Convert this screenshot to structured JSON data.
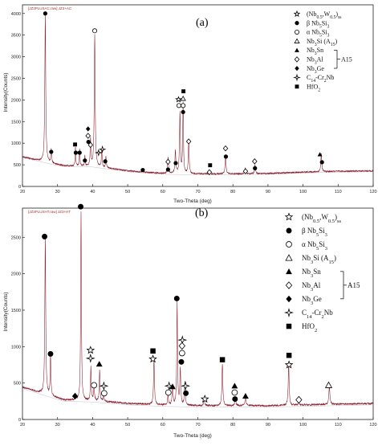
{
  "chart_data": [
    {
      "type": "line",
      "file_label": "[JZ3PLUSAC.raw] JZ3+AC",
      "panel_label": "(a)",
      "xlabel": "Two-Theta (deg)",
      "ylabel": "Intensity(Counts)",
      "xlim": [
        20,
        120
      ],
      "ylim": [
        0,
        4200
      ],
      "x_ticks": [
        20,
        30,
        40,
        50,
        60,
        70,
        80,
        90,
        100,
        110,
        120
      ],
      "y_ticks": [
        0,
        500,
        1000,
        1500,
        2000,
        2500,
        3000,
        3500,
        4000
      ],
      "baseline": [
        [
          20,
          540
        ],
        [
          30,
          480
        ],
        [
          40,
          470
        ],
        [
          50,
          360
        ],
        [
          60,
          300
        ],
        [
          70,
          290
        ],
        [
          80,
          290
        ],
        [
          90,
          300
        ],
        [
          100,
          330
        ],
        [
          110,
          350
        ],
        [
          120,
          360
        ]
      ],
      "peaks": [
        {
          "x": 26.5,
          "y": 3900,
          "w": 0.3
        },
        {
          "x": 28.2,
          "y": 820,
          "w": 0.25
        },
        {
          "x": 35.1,
          "y": 920,
          "w": 0.2
        },
        {
          "x": 36.3,
          "y": 880,
          "w": 0.2
        },
        {
          "x": 37.8,
          "y": 720,
          "w": 0.2
        },
        {
          "x": 39.4,
          "y": 1100,
          "w": 0.25
        },
        {
          "x": 40.6,
          "y": 3520,
          "w": 0.3
        },
        {
          "x": 42.6,
          "y": 870,
          "w": 0.25
        },
        {
          "x": 43.8,
          "y": 690,
          "w": 0.25
        },
        {
          "x": 54.3,
          "y": 360,
          "w": 0.3
        },
        {
          "x": 61.5,
          "y": 680,
          "w": 0.3
        },
        {
          "x": 63.6,
          "y": 830,
          "w": 0.3
        },
        {
          "x": 64.9,
          "y": 1700,
          "w": 0.3
        },
        {
          "x": 65.8,
          "y": 1920,
          "w": 0.25
        },
        {
          "x": 67.4,
          "y": 1010,
          "w": 0.3
        },
        {
          "x": 77.9,
          "y": 730,
          "w": 0.3
        },
        {
          "x": 83.5,
          "y": 420,
          "w": 0.3
        },
        {
          "x": 86.3,
          "y": 500,
          "w": 0.3
        },
        {
          "x": 105.2,
          "y": 760,
          "w": 0.3
        }
      ],
      "markers": [
        {
          "sym": "filled-circle",
          "x": 26.5,
          "y": 4000
        },
        {
          "sym": "filled-circle",
          "x": 28.2,
          "y": 800
        },
        {
          "sym": "filled-square",
          "x": 35.0,
          "y": 970
        },
        {
          "sym": "filled-circle",
          "x": 35.2,
          "y": 780
        },
        {
          "sym": "filled-circle",
          "x": 36.3,
          "y": 780
        },
        {
          "sym": "filled-circle",
          "x": 37.8,
          "y": 600
        },
        {
          "sym": "filled-diamond",
          "x": 38.7,
          "y": 1330
        },
        {
          "sym": "open-diamond",
          "x": 38.7,
          "y": 1170
        },
        {
          "sym": "filled-circle",
          "x": 38.8,
          "y": 1030
        },
        {
          "sym": "open-diamond",
          "x": 39.4,
          "y": 960
        },
        {
          "sym": "open-circle",
          "x": 40.6,
          "y": 3600
        },
        {
          "sym": "open-star4",
          "x": 41.7,
          "y": 780
        },
        {
          "sym": "open-star4",
          "x": 42.8,
          "y": 860
        },
        {
          "sym": "filled-circle",
          "x": 43.6,
          "y": 580
        },
        {
          "sym": "filled-circle",
          "x": 54.3,
          "y": 380
        },
        {
          "sym": "open-diamond",
          "x": 61.5,
          "y": 570
        },
        {
          "sym": "filled-circle",
          "x": 61.5,
          "y": 390
        },
        {
          "sym": "filled-circle",
          "x": 63.7,
          "y": 540
        },
        {
          "sym": "filled-square",
          "x": 65.9,
          "y": 2200
        },
        {
          "sym": "open-star",
          "x": 64.5,
          "y": 2010
        },
        {
          "sym": "open-triangle",
          "x": 65.8,
          "y": 2030
        },
        {
          "sym": "open-circle",
          "x": 64.6,
          "y": 1870
        },
        {
          "sym": "open-circle",
          "x": 65.8,
          "y": 1870
        },
        {
          "sym": "filled-circle",
          "x": 65.8,
          "y": 1720
        },
        {
          "sym": "open-diamond",
          "x": 67.4,
          "y": 1040
        },
        {
          "sym": "filled-square",
          "x": 73.5,
          "y": 490
        },
        {
          "sym": "open-diamond",
          "x": 73.3,
          "y": 330
        },
        {
          "sym": "open-diamond",
          "x": 77.9,
          "y": 880
        },
        {
          "sym": "filled-circle",
          "x": 78.0,
          "y": 690
        },
        {
          "sym": "open-diamond",
          "x": 83.6,
          "y": 350
        },
        {
          "sym": "open-diamond",
          "x": 86.2,
          "y": 580
        },
        {
          "sym": "filled-circle",
          "x": 86.3,
          "y": 420
        },
        {
          "sym": "filled-triangle",
          "x": 104.8,
          "y": 740
        },
        {
          "sym": "filled-circle",
          "x": 105.4,
          "y": 560
        }
      ],
      "legend": {
        "entries": [
          {
            "sym": "open-star",
            "text": "(Nb0.5,W0.5)ss"
          },
          {
            "sym": "filled-circle",
            "text": "β Nb5Si3"
          },
          {
            "sym": "open-circle",
            "text": "α Nb5Si3"
          },
          {
            "sym": "open-triangle",
            "text": "Nb3Si (A15)"
          },
          {
            "sym": "filled-triangle",
            "text": "Nb3Sn"
          },
          {
            "sym": "open-diamond",
            "text": "Nb3Al"
          },
          {
            "sym": "filled-diamond",
            "text": "Nb3Ge"
          },
          {
            "sym": "open-star4",
            "text": "C14-Cr2Nb"
          },
          {
            "sym": "filled-square",
            "text": "HfO2"
          }
        ],
        "group_label": "A15"
      }
    },
    {
      "type": "line",
      "file_label": "[JZ3PLUSHT.raw] JZ3+HT",
      "panel_label": "(b)",
      "xlabel": "Two-Theta (deg)",
      "ylabel": "Intensity(Counts)",
      "xlim": [
        20,
        120
      ],
      "ylim": [
        0,
        2900
      ],
      "x_ticks": [
        20,
        30,
        40,
        50,
        60,
        70,
        80,
        90,
        100,
        110,
        120
      ],
      "y_ticks": [
        0,
        500,
        1000,
        1500,
        2000,
        2500
      ],
      "baseline": [
        [
          20,
          300
        ],
        [
          30,
          270
        ],
        [
          40,
          260
        ],
        [
          50,
          220
        ],
        [
          60,
          200
        ],
        [
          70,
          190
        ],
        [
          80,
          190
        ],
        [
          90,
          190
        ],
        [
          100,
          200
        ],
        [
          110,
          210
        ],
        [
          120,
          220
        ]
      ],
      "peaks": [
        {
          "x": 26.5,
          "y": 2420,
          "w": 0.3
        },
        {
          "x": 28.0,
          "y": 830,
          "w": 0.25
        },
        {
          "x": 35.0,
          "y": 300,
          "w": 0.3
        },
        {
          "x": 36.7,
          "y": 2850,
          "w": 0.25
        },
        {
          "x": 39.5,
          "y": 730,
          "w": 0.25
        },
        {
          "x": 40.4,
          "y": 430,
          "w": 0.3
        },
        {
          "x": 42.0,
          "y": 680,
          "w": 0.25
        },
        {
          "x": 43.2,
          "y": 330,
          "w": 0.3
        },
        {
          "x": 57.5,
          "y": 830,
          "w": 0.3
        },
        {
          "x": 61.5,
          "y": 330,
          "w": 0.3
        },
        {
          "x": 62.8,
          "y": 480,
          "w": 0.3
        },
        {
          "x": 64.1,
          "y": 1610,
          "w": 0.25
        },
        {
          "x": 65.0,
          "y": 700,
          "w": 0.3
        },
        {
          "x": 66.3,
          "y": 510,
          "w": 0.3
        },
        {
          "x": 71.8,
          "y": 270,
          "w": 0.3
        },
        {
          "x": 77.0,
          "y": 770,
          "w": 0.3
        },
        {
          "x": 80.7,
          "y": 300,
          "w": 0.3
        },
        {
          "x": 83.6,
          "y": 320,
          "w": 0.3
        },
        {
          "x": 95.9,
          "y": 770,
          "w": 0.3
        },
        {
          "x": 98.8,
          "y": 250,
          "w": 0.3
        },
        {
          "x": 107.5,
          "y": 450,
          "w": 0.35
        }
      ],
      "markers": [
        {
          "sym": "filled-circle",
          "x": 26.3,
          "y": 2510
        },
        {
          "sym": "filled-circle",
          "x": 28.0,
          "y": 900
        },
        {
          "sym": "filled-diamond",
          "x": 35.0,
          "y": 320
        },
        {
          "sym": "filled-circle",
          "x": 36.6,
          "y": 2920
        },
        {
          "sym": "open-star",
          "x": 39.4,
          "y": 950
        },
        {
          "sym": "open-star4",
          "x": 39.4,
          "y": 840
        },
        {
          "sym": "open-circle",
          "x": 40.4,
          "y": 470
        },
        {
          "sym": "filled-triangle",
          "x": 41.9,
          "y": 760
        },
        {
          "sym": "open-star4",
          "x": 43.2,
          "y": 460
        },
        {
          "sym": "open-circle",
          "x": 43.3,
          "y": 360
        },
        {
          "sym": "filled-square",
          "x": 57.2,
          "y": 940
        },
        {
          "sym": "open-star",
          "x": 57.2,
          "y": 830
        },
        {
          "sym": "open-star4",
          "x": 61.8,
          "y": 460
        },
        {
          "sym": "open-circle",
          "x": 61.6,
          "y": 370
        },
        {
          "sym": "filled-triangle",
          "x": 62.8,
          "y": 450
        },
        {
          "sym": "filled-circle",
          "x": 64.0,
          "y": 1660
        },
        {
          "sym": "open-star4",
          "x": 65.6,
          "y": 1090
        },
        {
          "sym": "open-diamond",
          "x": 65.5,
          "y": 1010
        },
        {
          "sym": "open-circle",
          "x": 65.5,
          "y": 910
        },
        {
          "sym": "filled-circle",
          "x": 65.3,
          "y": 790
        },
        {
          "sym": "open-star4",
          "x": 66.5,
          "y": 460
        },
        {
          "sym": "filled-circle",
          "x": 66.6,
          "y": 360
        },
        {
          "sym": "open-star",
          "x": 72.0,
          "y": 280
        },
        {
          "sym": "filled-square",
          "x": 77.0,
          "y": 820
        },
        {
          "sym": "filled-triangle",
          "x": 80.5,
          "y": 460
        },
        {
          "sym": "open-circle",
          "x": 80.5,
          "y": 370
        },
        {
          "sym": "filled-circle",
          "x": 80.6,
          "y": 280
        },
        {
          "sym": "filled-triangle",
          "x": 83.6,
          "y": 320
        },
        {
          "sym": "filled-square",
          "x": 96.0,
          "y": 880
        },
        {
          "sym": "open-star",
          "x": 96.0,
          "y": 750
        },
        {
          "sym": "open-diamond",
          "x": 98.8,
          "y": 270
        },
        {
          "sym": "open-triangle",
          "x": 107.3,
          "y": 470
        }
      ],
      "legend": {
        "entries": [
          {
            "sym": "open-star",
            "text": "(Nb0.5,W0.5)ss"
          },
          {
            "sym": "filled-circle",
            "text": "β Nb5Si3"
          },
          {
            "sym": "open-circle",
            "text": "α Nb5Si3"
          },
          {
            "sym": "open-triangle",
            "text": "Nb3Si (A15)"
          },
          {
            "sym": "filled-triangle",
            "text": "Nb3Sn"
          },
          {
            "sym": "open-diamond",
            "text": "Nb3Al"
          },
          {
            "sym": "filled-diamond",
            "text": "Nb3Ge"
          },
          {
            "sym": "open-star4",
            "text": "C14-Cr2Nb"
          },
          {
            "sym": "filled-square",
            "text": "HfO2"
          }
        ],
        "group_label": "A15"
      }
    }
  ]
}
